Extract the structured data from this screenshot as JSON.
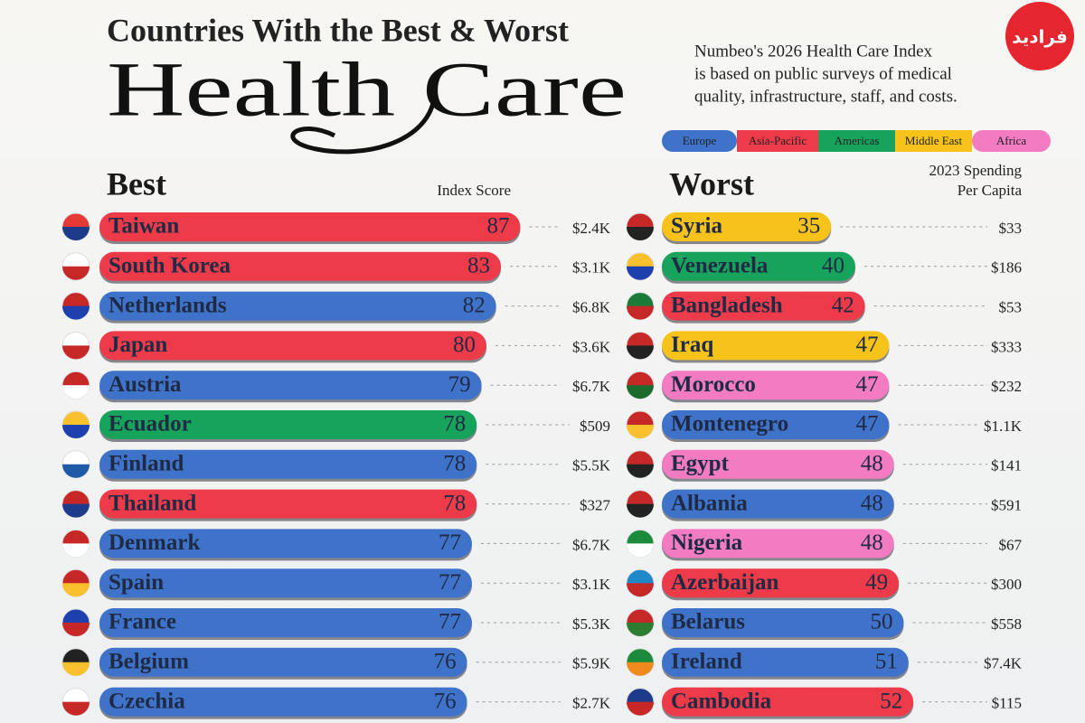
{
  "header": {
    "title": "Countries With the Best & Worst",
    "headline": "Health Care",
    "description": [
      "Numbeo's 2026 Health Care Index",
      "is based on public surveys of medical",
      "quality, infrastructure, staff, and costs."
    ],
    "watermark": "فرادید"
  },
  "legend": [
    {
      "name": "Europe",
      "color": "#3f73c9"
    },
    {
      "name": "Asia-Pacific",
      "color": "#ee3b4a"
    },
    {
      "name": "Americas",
      "color": "#17a35c"
    },
    {
      "name": "Middle East",
      "color": "#f7c21a"
    },
    {
      "name": "Africa",
      "color": "#f27bc2"
    }
  ],
  "chart_data": [
    {
      "type": "bar",
      "title": "Best",
      "value_title": "Index Score",
      "categories": [
        "Taiwan",
        "South Korea",
        "Netherlands",
        "Japan",
        "Austria",
        "Ecuador",
        "Finland",
        "Thailand",
        "Denmark",
        "Spain",
        "France",
        "Belgium",
        "Czechia"
      ],
      "values": [
        87,
        83,
        82,
        80,
        79,
        78,
        78,
        78,
        77,
        77,
        77,
        76,
        76
      ],
      "colors": [
        "#ee3b4a",
        "#ee3b4a",
        "#3f73c9",
        "#ee3b4a",
        "#3f73c9",
        "#17a35c",
        "#3f73c9",
        "#ee3b4a",
        "#3f73c9",
        "#3f73c9",
        "#3f73c9",
        "#3f73c9",
        "#3f73c9"
      ],
      "spending": [
        "$2.4K",
        "$3.1K",
        "$6.8K",
        "$3.6K",
        "$6.7K",
        "$509",
        "$5.5K",
        "$327",
        "$6.7K",
        "$3.1K",
        "$5.3K",
        "$5.9K",
        "$2.7K"
      ]
    },
    {
      "type": "bar",
      "title": "Worst",
      "spending_title": [
        "2023 Spending",
        "Per Capita"
      ],
      "categories": [
        "Syria",
        "Venezuela",
        "Bangladesh",
        "Iraq",
        "Morocco",
        "Montenegro",
        "Egypt",
        "Albania",
        "Nigeria",
        "Azerbaijan",
        "Belarus",
        "Ireland",
        "Cambodia"
      ],
      "values": [
        35,
        40,
        42,
        47,
        47,
        47,
        48,
        48,
        48,
        49,
        50,
        51,
        52
      ],
      "colors": [
        "#f7c21a",
        "#17a35c",
        "#ee3b4a",
        "#f7c21a",
        "#f27bc2",
        "#3f73c9",
        "#f27bc2",
        "#3f73c9",
        "#f27bc2",
        "#ee3b4a",
        "#3f73c9",
        "#3f73c9",
        "#ee3b4a"
      ],
      "spending": [
        "$33",
        "$186",
        "$53",
        "$333",
        "$232",
        "$1.1K",
        "$141",
        "$591",
        "$67",
        "$300",
        "$558",
        "$7.4K",
        "$115"
      ]
    }
  ]
}
